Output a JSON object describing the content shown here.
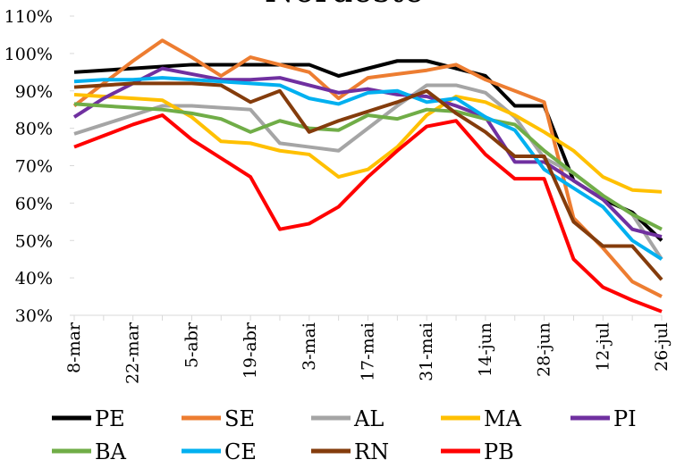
{
  "chart_data": {
    "type": "line",
    "title": "Nordeste",
    "categories": [
      "8-mar",
      null,
      "22-mar",
      null,
      "5-abr",
      null,
      "19-abr",
      null,
      "3-mai",
      null,
      "17-mai",
      null,
      "31-mai",
      null,
      "14-jun",
      null,
      "28-jun",
      null,
      "12-jul",
      null,
      "26-jul"
    ],
    "ylim": [
      30,
      110
    ],
    "yticks": [
      {
        "value": 30,
        "label": "30%"
      },
      {
        "value": 40,
        "label": "40%"
      },
      {
        "value": 50,
        "label": "50%"
      },
      {
        "value": 60,
        "label": "60%"
      },
      {
        "value": 70,
        "label": "70%"
      },
      {
        "value": 80,
        "label": "80%"
      },
      {
        "value": 90,
        "label": "90%"
      },
      {
        "value": 100,
        "label": "100%"
      },
      {
        "value": 110,
        "label": "110%"
      }
    ],
    "series": [
      {
        "name": "PE",
        "color": "#000000",
        "values": [
          95,
          95.5,
          96,
          96.5,
          97,
          97,
          97,
          97,
          97,
          94,
          96,
          98,
          98,
          96,
          94,
          86,
          86,
          66,
          61,
          57.5,
          50
        ]
      },
      {
        "name": "SE",
        "color": "#ed7d31",
        "values": [
          86,
          92,
          98,
          103.5,
          99,
          94,
          99,
          97,
          95,
          88,
          93.5,
          94.5,
          95.5,
          97,
          93,
          90,
          87,
          56,
          48,
          39,
          35
        ]
      },
      {
        "name": "AL",
        "color": "#a5a5a5",
        "values": [
          78.5,
          81,
          83.5,
          86,
          86,
          85.5,
          85,
          76,
          75,
          74,
          80,
          86,
          91.5,
          91.5,
          89.5,
          83,
          72,
          68,
          62,
          57,
          45
        ]
      },
      {
        "name": "MA",
        "color": "#ffc000",
        "values": [
          89,
          88.5,
          88,
          87.5,
          83,
          76.5,
          76,
          74,
          73,
          67,
          69,
          75,
          83.5,
          88.5,
          87,
          83.5,
          79,
          74,
          67,
          63.5,
          63
        ]
      },
      {
        "name": "PI",
        "color": "#7030a0",
        "values": [
          83,
          88,
          92,
          96,
          94.5,
          93,
          93,
          93.5,
          91.5,
          89.5,
          90.5,
          89,
          88.5,
          86,
          83,
          71,
          71,
          66,
          61,
          53,
          51
        ]
      },
      {
        "name": "BA",
        "color": "#70ad47",
        "values": [
          86.5,
          86,
          85.5,
          85,
          84,
          82.5,
          79,
          82,
          80,
          79.5,
          83.5,
          82.5,
          85,
          84.5,
          82.5,
          81,
          74,
          68,
          62,
          57,
          53
        ]
      },
      {
        "name": "CE",
        "color": "#00b0f0",
        "values": [
          92.5,
          93,
          93,
          93.5,
          93,
          92.5,
          92,
          91.5,
          88,
          86.5,
          89.5,
          90,
          87,
          88,
          83,
          79.5,
          69,
          64,
          59,
          50,
          45
        ]
      },
      {
        "name": "RN",
        "color": "#843c0c",
        "values": [
          91,
          91.5,
          92,
          92,
          92,
          91.5,
          87,
          90,
          79,
          82,
          84.5,
          87,
          90,
          84,
          79,
          72.5,
          72.5,
          55,
          48.5,
          48.5,
          39.5
        ]
      },
      {
        "name": "PB",
        "color": "#ff0000",
        "values": [
          75,
          78,
          81,
          83.5,
          77,
          72,
          67,
          53,
          54.5,
          59,
          67,
          74,
          80.5,
          82,
          73,
          66.5,
          66.5,
          45,
          37.5,
          34,
          31
        ]
      }
    ]
  }
}
